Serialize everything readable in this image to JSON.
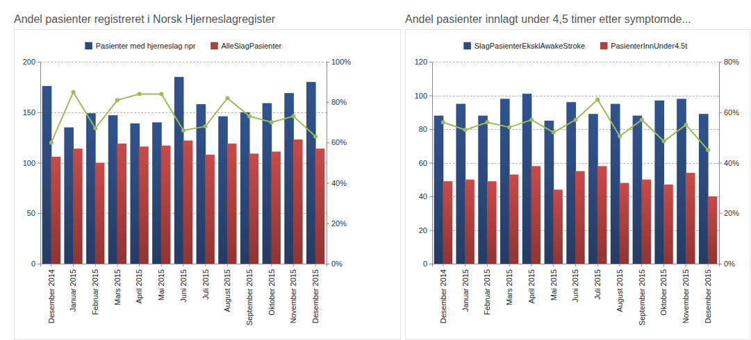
{
  "chart_data": [
    {
      "type": "bar",
      "title": "Andel pasienter registreret i Norsk Hjerneslagregister",
      "categories": [
        "Desember 2014",
        "Januar 2015",
        "Februar 2015",
        "Mars 2015",
        "April 2015",
        "Mai 2015",
        "Juni 2015",
        "Juli 2015",
        "August 2015",
        "September 2015",
        "Oktober 2015",
        "November 2015",
        "Desember 2015"
      ],
      "series": [
        {
          "name": "Pasienter med hjerneslag npr",
          "type": "bar",
          "color": "#2b4a7d",
          "values": [
            176,
            135,
            149,
            147,
            139,
            140,
            185,
            158,
            146,
            150,
            159,
            169,
            180
          ]
        },
        {
          "name": "AlleSlagPasienter",
          "type": "bar",
          "color": "#b2413e",
          "values": [
            106,
            114,
            100,
            119,
            116,
            117,
            122,
            108,
            119,
            109,
            111,
            123,
            114
          ]
        },
        {
          "type": "line",
          "axis": "y2",
          "color": "#9bbb59",
          "marker": "circle",
          "values": [
            60,
            85,
            67,
            81,
            84,
            84,
            66,
            68,
            82,
            73,
            70,
            73,
            63
          ]
        }
      ],
      "ylim": [
        0,
        200
      ],
      "yticks": [
        0,
        50,
        100,
        150,
        200
      ],
      "y2lim": [
        0,
        100
      ],
      "y2ticks": [
        {
          "value": 0,
          "label": "0%"
        },
        {
          "value": 20,
          "label": "20%"
        },
        {
          "value": 40,
          "label": "40%"
        },
        {
          "value": 60,
          "label": "60%"
        },
        {
          "value": 80,
          "label": "80%"
        },
        {
          "value": 100,
          "label": "100%"
        }
      ],
      "grid": true,
      "legend": "top"
    },
    {
      "type": "bar",
      "title": "Andel pasienter innlagt under 4,5 timer etter symptomde...",
      "categories": [
        "Desember 2014",
        "Januar 2015",
        "Februar 2015",
        "Mars 2015",
        "April 2015",
        "Mai 2015",
        "Juni 2015",
        "Juli 2015",
        "August 2015",
        "September 2015",
        "Oktober 2015",
        "November 2015",
        "Desember 2015"
      ],
      "series": [
        {
          "name": "SlagPasienterEksklAwakeStroke",
          "type": "bar",
          "color": "#2b4a7d",
          "values": [
            88,
            95,
            88,
            98,
            101,
            85,
            96,
            89,
            95,
            88,
            97,
            98,
            89
          ]
        },
        {
          "name": "PasienterInnUnder4.5t",
          "type": "bar",
          "color": "#b2413e",
          "values": [
            49,
            50,
            49,
            53,
            58,
            44,
            55,
            58,
            48,
            50,
            47,
            54,
            40
          ]
        },
        {
          "type": "line",
          "axis": "y2",
          "color": "#9bbb59",
          "marker": "circle",
          "values": [
            56,
            53,
            56,
            54,
            57,
            52,
            57,
            65,
            50.5,
            57,
            48.5,
            55,
            45
          ]
        }
      ],
      "ylim": [
        0,
        120
      ],
      "yticks": [
        0,
        20,
        40,
        60,
        80,
        100,
        120
      ],
      "y2lim": [
        0,
        80
      ],
      "y2ticks": [
        {
          "value": 0,
          "label": "0%"
        },
        {
          "value": 20,
          "label": "20%"
        },
        {
          "value": 40,
          "label": "40%"
        },
        {
          "value": 60,
          "label": "60%"
        },
        {
          "value": 80,
          "label": "80%"
        }
      ],
      "grid": true,
      "legend": "top"
    }
  ]
}
